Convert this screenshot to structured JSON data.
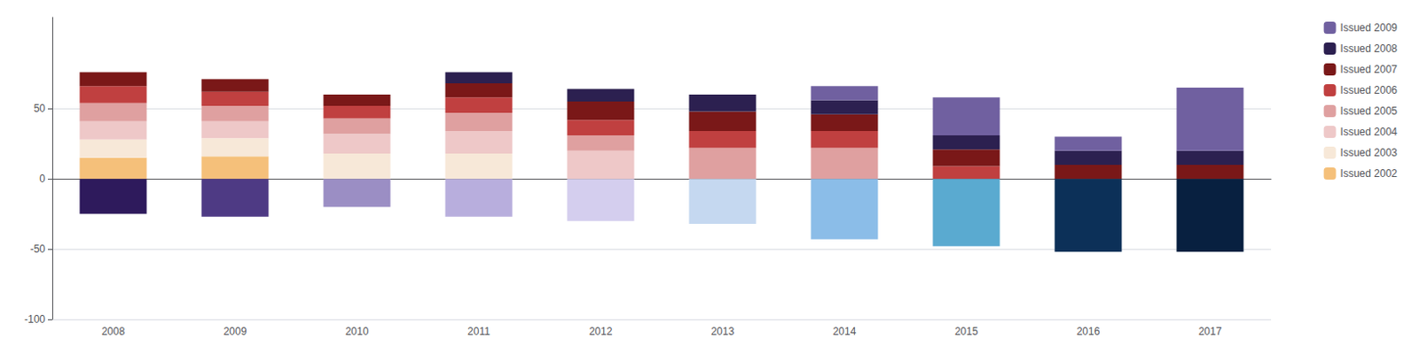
{
  "chart_data": {
    "type": "bar",
    "stacked": true,
    "categories": [
      "2008",
      "2009",
      "2010",
      "2011",
      "2012",
      "2013",
      "2014",
      "2015",
      "2016",
      "2017"
    ],
    "series": [
      {
        "name": "Issued 2002",
        "color": "#F5C07A",
        "values": [
          15,
          16,
          0,
          0,
          0,
          0,
          0,
          0,
          0,
          0
        ]
      },
      {
        "name": "Issued 2003",
        "color": "#F7E8D8",
        "values": [
          13,
          13,
          18,
          18,
          0,
          0,
          0,
          0,
          0,
          0
        ]
      },
      {
        "name": "Issued 2004",
        "color": "#EEC8C8",
        "values": [
          13,
          12,
          14,
          16,
          20,
          0,
          0,
          0,
          0,
          0
        ]
      },
      {
        "name": "Issued 2005",
        "color": "#DFA0A0",
        "values": [
          13,
          11,
          11,
          13,
          11,
          22,
          22,
          0,
          0,
          0
        ]
      },
      {
        "name": "Issued 2006",
        "color": "#C04040",
        "values": [
          12,
          10,
          9,
          11,
          11,
          12,
          12,
          9,
          0,
          0
        ]
      },
      {
        "name": "Issued 2007",
        "color": "#7A1818",
        "values": [
          10,
          9,
          8,
          10,
          13,
          14,
          12,
          12,
          10,
          10
        ]
      },
      {
        "name": "Issued 2008",
        "color": "#2C2050",
        "values": [
          0,
          0,
          0,
          8,
          9,
          12,
          10,
          10,
          10,
          10
        ]
      },
      {
        "name": "Issued 2009",
        "color": "#7060A0",
        "values": [
          0,
          0,
          0,
          0,
          0,
          0,
          10,
          27,
          10,
          45
        ]
      },
      {
        "values": [
          -25,
          -27,
          -20,
          -27,
          -30,
          -32,
          -43,
          -48,
          -52,
          -52
        ],
        "colors": [
          "#2E1A5C",
          "#4E3A84",
          "#9B8EC4",
          "#B8AEDD",
          "#D4CEEE",
          "#C5D8F0",
          "#8BBDE8",
          "#5AAAD0",
          "#0C3058",
          "#082040"
        ]
      }
    ],
    "ylim": [
      -100,
      115
    ],
    "yticks": [
      -100,
      -50,
      0,
      50
    ],
    "grid": true,
    "legend": "right"
  }
}
